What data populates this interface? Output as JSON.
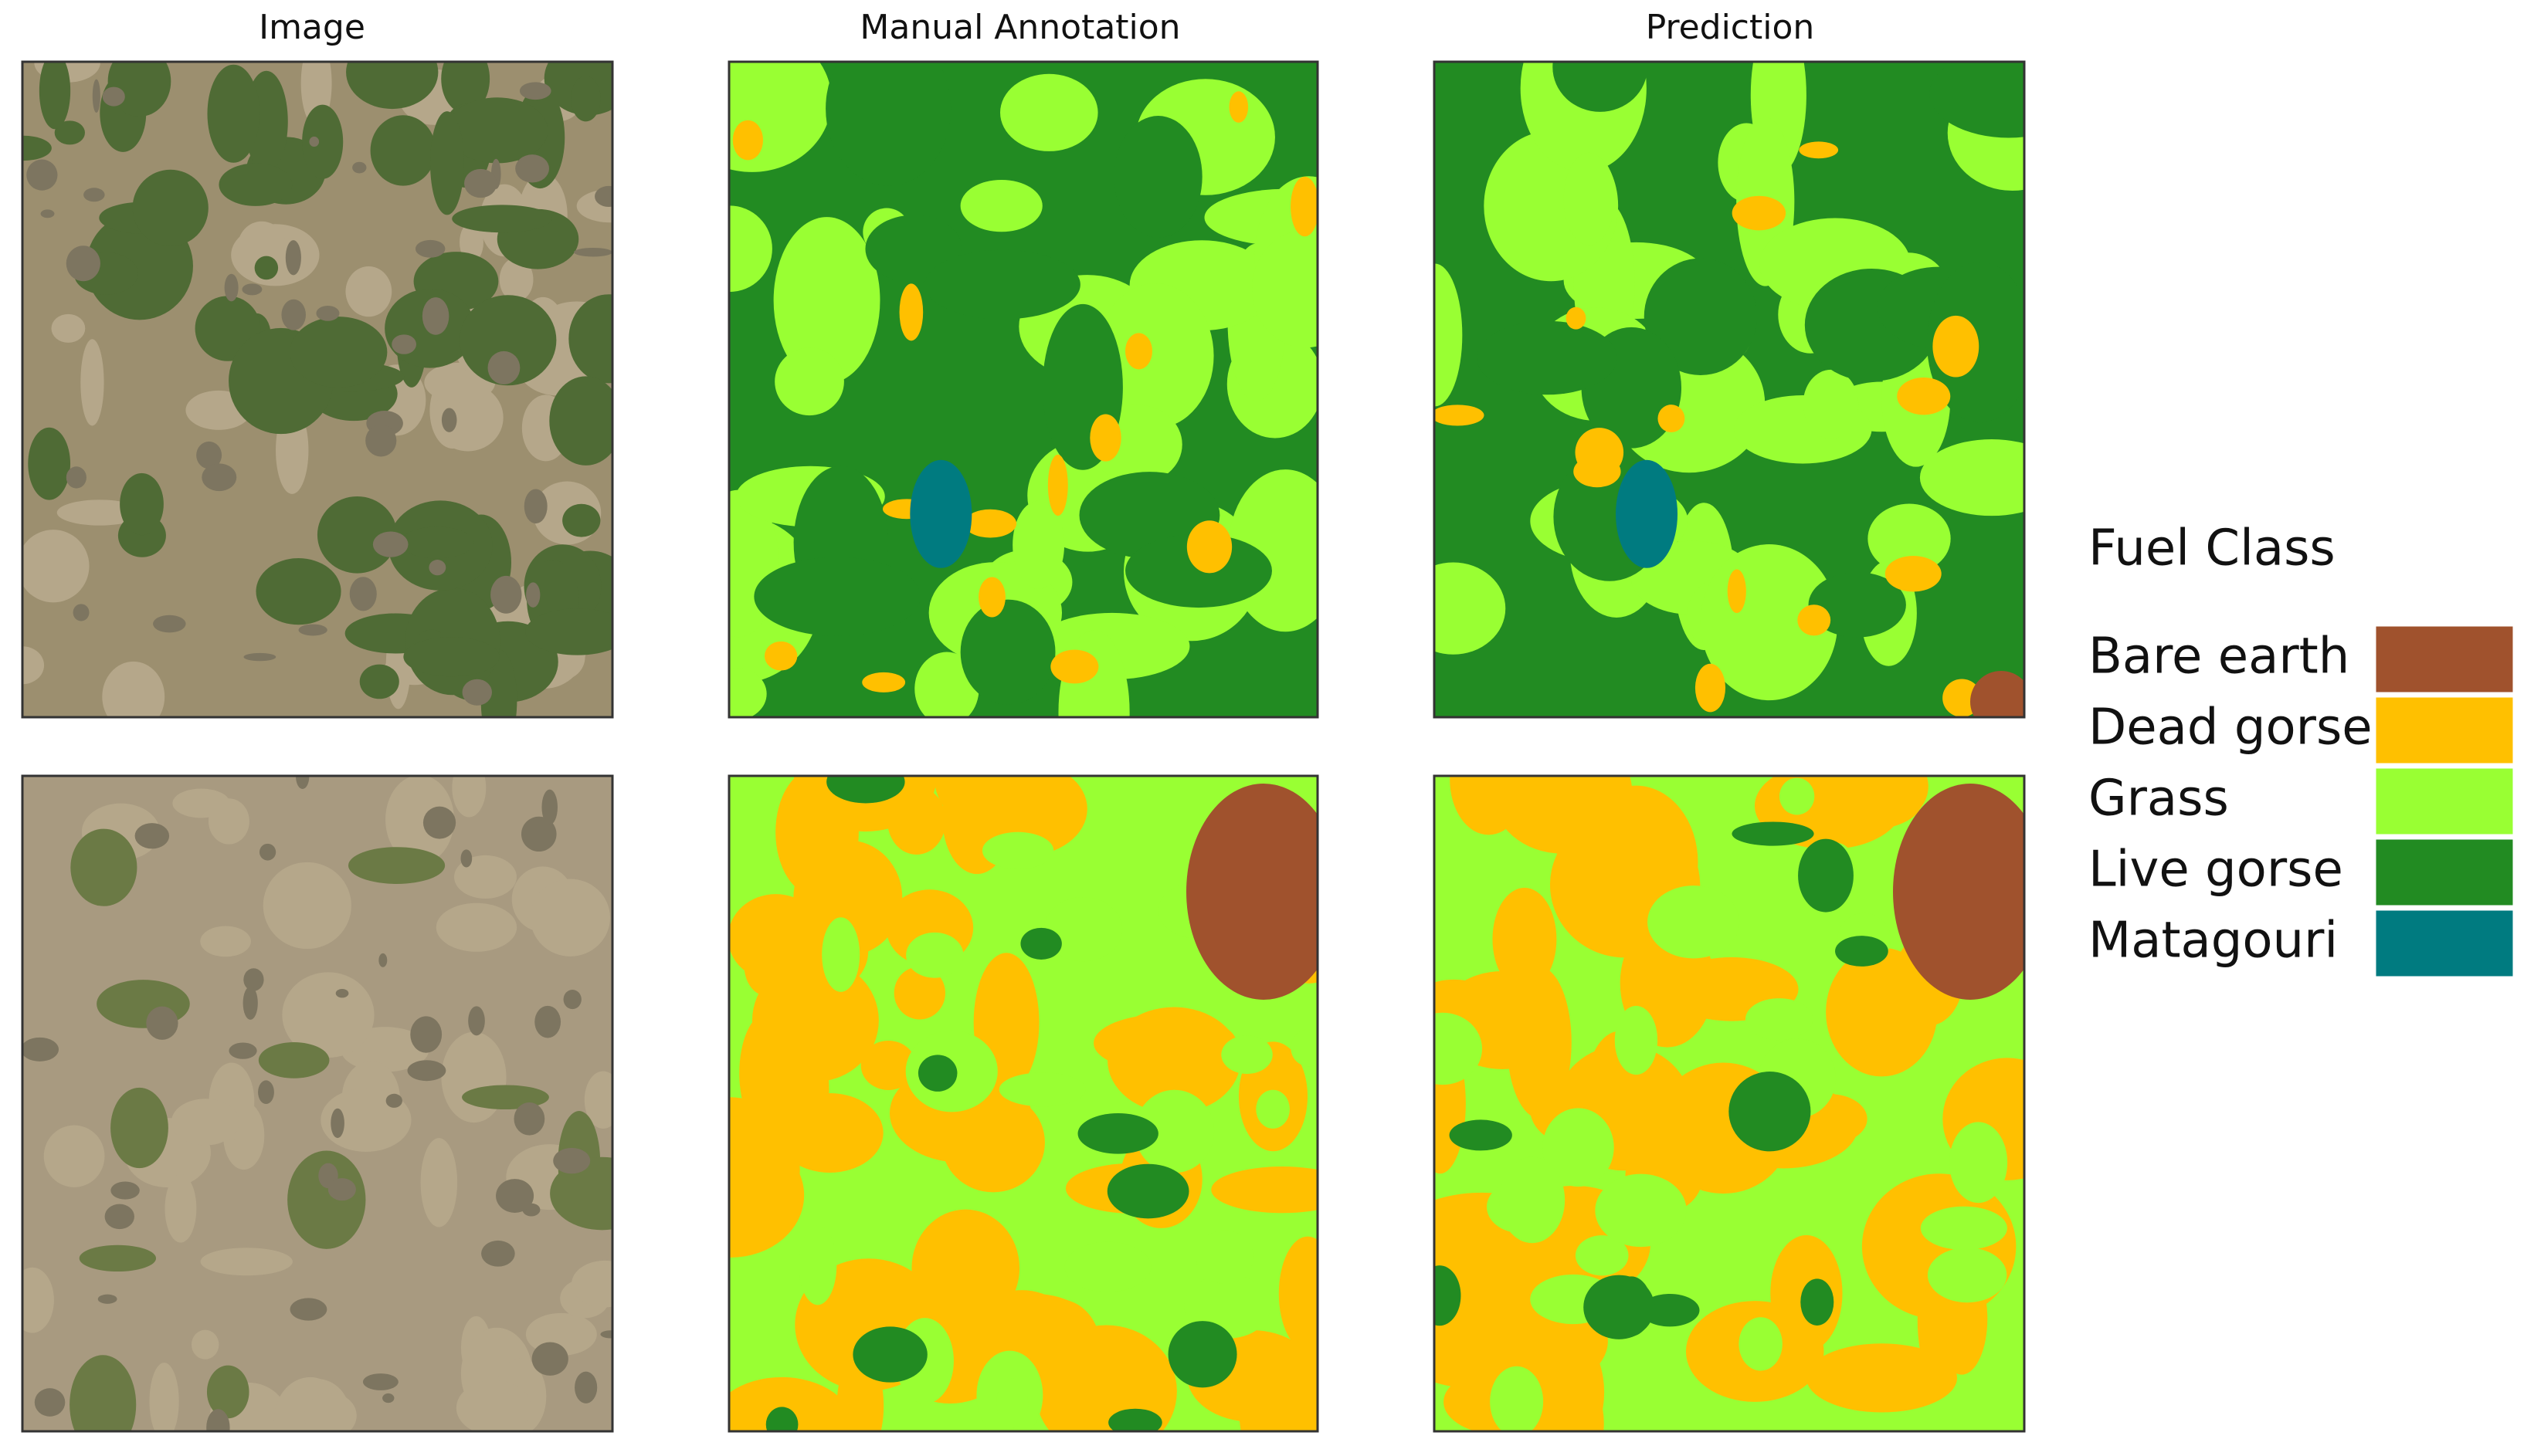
{
  "columns": [
    "Image",
    "Manual Annotation",
    "Prediction"
  ],
  "legend": {
    "title": "Fuel Class",
    "items": [
      {
        "label": "Bare earth",
        "color": "#a0522d"
      },
      {
        "label": "Dead gorse",
        "color": "#ffc000"
      },
      {
        "label": "Grass",
        "color": "#99ff33"
      },
      {
        "label": "Live gorse",
        "color": "#228b22"
      },
      {
        "label": "Matagouri",
        "color": "#007b80"
      }
    ]
  }
}
